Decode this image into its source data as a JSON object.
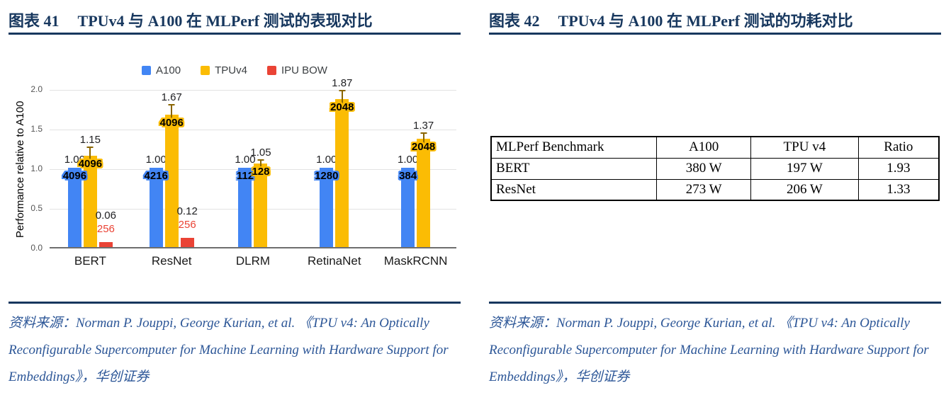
{
  "theme": {
    "heading_color": "#17375E",
    "source_text_color": "#2c5697"
  },
  "fig41": {
    "num": "图表 41",
    "title": "TPUv4 与 A100 在 MLPerf 测试的表现对比",
    "source": "资料来源：Norman P. Jouppi, George Kurian, et al.  《TPU v4: An Optically Reconfigurable Supercomputer for Machine Learning with Hardware Support for Embeddings》，华创证券"
  },
  "fig42": {
    "num": "图表 42",
    "title": "TPUv4 与 A100 在 MLPerf 测试的功耗对比",
    "source": "资料来源：Norman P. Jouppi, George Kurian, et al.  《TPU v4: An Optically Reconfigurable Supercomputer for Machine Learning with Hardware Support for Embeddings》，华创证券",
    "table": {
      "headers": [
        "MLPerf Benchmark",
        "A100",
        "TPU v4",
        "Ratio"
      ],
      "rows": [
        [
          "BERT",
          "380 W",
          "197 W",
          "1.93"
        ],
        [
          "ResNet",
          "273 W",
          "206 W",
          "1.33"
        ]
      ]
    }
  },
  "chart_data": {
    "type": "bar",
    "title": "",
    "ylabel": "Performance relative to A100",
    "xlabel": "",
    "ylim": [
      0,
      2.0
    ],
    "yticks": [
      0.0,
      0.5,
      1.0,
      1.5,
      2.0
    ],
    "grid": true,
    "legend_position": "top",
    "categories": [
      "BERT",
      "ResNet",
      "DLRM",
      "RetinaNet",
      "MaskRCNN"
    ],
    "series": [
      {
        "name": "A100",
        "color": "#4285F4",
        "values": [
          1.0,
          1.0,
          1.0,
          1.0,
          1.0
        ],
        "bar_labels": [
          "4096",
          "4216",
          "112",
          "1280",
          "384"
        ]
      },
      {
        "name": "TPUv4",
        "color": "#FBBC04",
        "values": [
          1.15,
          1.67,
          1.05,
          1.87,
          1.37
        ],
        "bar_labels": [
          "4096",
          "4096",
          "128",
          "2048",
          "2048"
        ],
        "err_up": [
          0.1,
          0.12,
          0.04,
          0.09,
          0.06
        ],
        "err_color": "#8a6500"
      },
      {
        "name": "IPU BOW",
        "color": "#EA4335",
        "values": [
          0.06,
          0.12,
          null,
          null,
          null
        ],
        "bar_labels": [
          "256",
          "256",
          null,
          null,
          null
        ]
      }
    ]
  }
}
